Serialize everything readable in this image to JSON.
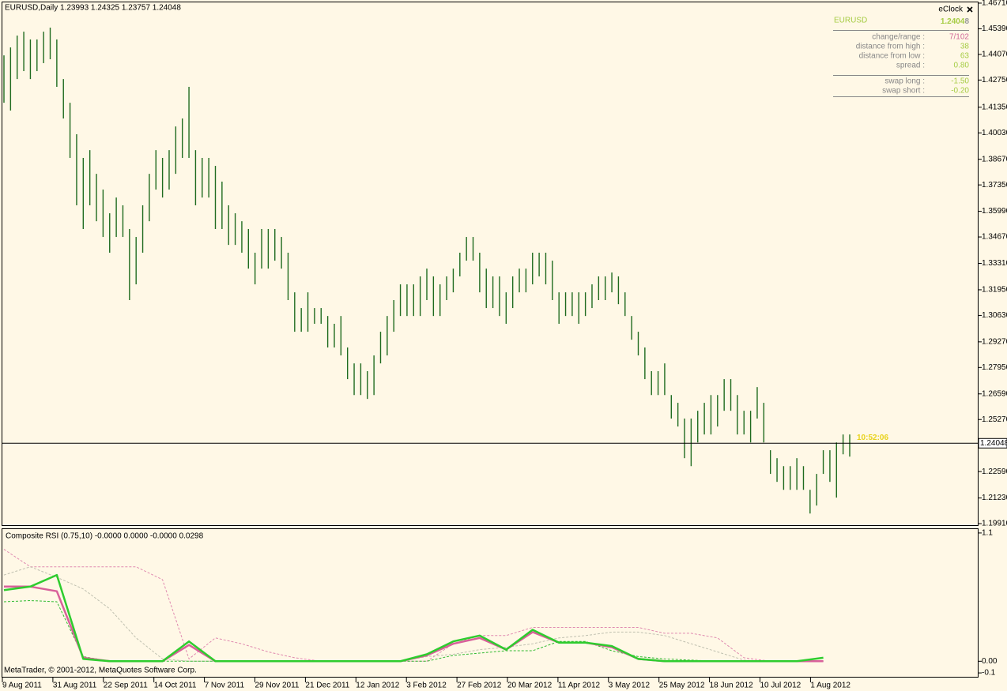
{
  "chart_data": [
    {
      "type": "hl",
      "title": "EURUSD,Daily  1.23993 1.24325 1.23757 1.24048",
      "color": "#1f6b1f",
      "high": [
        1.4402,
        1.4443,
        1.4504,
        1.4524,
        1.4484,
        1.4484,
        1.4524,
        1.4545,
        1.4484,
        1.428,
        1.4158,
        1.3996,
        1.3874,
        1.3914,
        1.3792,
        1.3711,
        1.3589,
        1.367,
        1.363,
        1.3508,
        1.3467,
        1.363,
        1.3792,
        1.3914,
        1.3874,
        1.3914,
        1.4036,
        1.4077,
        1.424,
        1.3914,
        1.3874,
        1.3874,
        1.3833,
        1.3752,
        1.363,
        1.3589,
        1.3548,
        1.3508,
        1.3386,
        1.3508,
        1.3508,
        1.3508,
        1.3467,
        1.3386,
        1.3182,
        1.3101,
        1.3182,
        1.3101,
        1.3101,
        1.306,
        1.302,
        1.306,
        1.2898,
        1.2816,
        1.2816,
        1.2776,
        1.2857,
        1.2979,
        1.306,
        1.3142,
        1.3223,
        1.3223,
        1.3223,
        1.3264,
        1.3304,
        1.3264,
        1.3223,
        1.3264,
        1.3304,
        1.3386,
        1.3467,
        1.3467,
        1.3386,
        1.3304,
        1.3264,
        1.3264,
        1.3182,
        1.3264,
        1.3304,
        1.3304,
        1.3386,
        1.3386,
        1.3386,
        1.3345,
        1.3182,
        1.3182,
        1.3182,
        1.3182,
        1.3182,
        1.3223,
        1.3264,
        1.3264,
        1.3284,
        1.3264,
        1.3182,
        1.306,
        1.2979,
        1.2898,
        1.2776,
        1.2776,
        1.2816,
        1.2653,
        1.2613,
        1.2532,
        1.2532,
        1.2572,
        1.2613,
        1.2653,
        1.2653,
        1.2735,
        1.2735,
        1.2653,
        1.2572,
        1.2572,
        1.2694,
        1.2613,
        1.2369,
        1.2328,
        1.2287,
        1.2287,
        1.2328,
        1.2287,
        1.2165,
        1.2247,
        1.2369,
        1.2369,
        1.2409,
        1.245,
        1.245
      ],
      "low": [
        1.4158,
        1.4118,
        1.428,
        1.4321,
        1.428,
        1.4321,
        1.4362,
        1.4382,
        1.424,
        1.4077,
        1.3874,
        1.363,
        1.3508,
        1.363,
        1.3548,
        1.3467,
        1.3386,
        1.3467,
        1.3467,
        1.3142,
        1.3223,
        1.3386,
        1.3548,
        1.3711,
        1.367,
        1.3711,
        1.3792,
        1.3874,
        1.3874,
        1.363,
        1.367,
        1.367,
        1.3508,
        1.3508,
        1.3426,
        1.3426,
        1.3386,
        1.3304,
        1.3223,
        1.3304,
        1.3304,
        1.3345,
        1.3304,
        1.3142,
        1.2979,
        1.2979,
        1.2979,
        1.302,
        1.302,
        1.2898,
        1.2898,
        1.2857,
        1.2735,
        1.2653,
        1.2653,
        1.2633,
        1.2653,
        1.2816,
        1.2857,
        1.2979,
        1.306,
        1.306,
        1.306,
        1.306,
        1.3142,
        1.306,
        1.306,
        1.3142,
        1.3182,
        1.3264,
        1.3345,
        1.3345,
        1.3182,
        1.3101,
        1.3101,
        1.306,
        1.302,
        1.3101,
        1.3182,
        1.3182,
        1.3223,
        1.3264,
        1.3223,
        1.3142,
        1.302,
        1.306,
        1.306,
        1.302,
        1.306,
        1.3101,
        1.3142,
        1.3142,
        1.3182,
        1.3121,
        1.306,
        1.2938,
        1.2857,
        1.2735,
        1.2653,
        1.2653,
        1.2653,
        1.2532,
        1.2491,
        1.2328,
        1.2287,
        1.2409,
        1.245,
        1.245,
        1.2491,
        1.2572,
        1.2572,
        1.245,
        1.245,
        1.2409,
        1.2532,
        1.2409,
        1.2247,
        1.2206,
        1.2165,
        1.2165,
        1.2165,
        1.2165,
        1.2043,
        1.2084,
        1.2247,
        1.2206,
        1.2125,
        1.2348,
        1.2336
      ],
      "ylim": [
        1.1979,
        1.4679
      ],
      "yticks": [
        {
          "value": 1.4671,
          "label": "1.46710"
        },
        {
          "value": 1.4539,
          "label": "1.45390"
        },
        {
          "value": 1.4407,
          "label": "1.44070"
        },
        {
          "value": 1.4275,
          "label": "1.42750"
        },
        {
          "value": 1.4135,
          "label": "1.41350"
        },
        {
          "value": 1.4003,
          "label": "1.40030"
        },
        {
          "value": 1.3867,
          "label": "1.38670"
        },
        {
          "value": 1.3735,
          "label": "1.37350"
        },
        {
          "value": 1.3599,
          "label": "1.35990"
        },
        {
          "value": 1.3467,
          "label": "1.34670"
        },
        {
          "value": 1.3331,
          "label": "1.33310"
        },
        {
          "value": 1.3195,
          "label": "1.31950"
        },
        {
          "value": 1.3063,
          "label": "1.30630"
        },
        {
          "value": 1.2927,
          "label": "1.29270"
        },
        {
          "value": 1.2795,
          "label": "1.27950"
        },
        {
          "value": 1.2659,
          "label": "1.26590"
        },
        {
          "value": 1.2527,
          "label": "1.25270"
        },
        {
          "value": 1.2259,
          "label": "1.22590"
        },
        {
          "value": 1.2123,
          "label": "1.21230"
        },
        {
          "value": 1.1991,
          "label": "1.19910"
        }
      ],
      "x_labels": [
        "9 Aug 2011",
        "31 Aug 2011",
        "22 Sep 2011",
        "14 Oct 2011",
        "7 Nov 2011",
        "29 Nov 2011",
        "21 Dec 2011",
        "12 Jan 2012",
        "3 Feb 2012",
        "27 Feb 2012",
        "20 Mar 2012",
        "11 Apr 2012",
        "3 May 2012",
        "25 May 2012",
        "18 Jun 2012",
        "10 Jul 2012",
        "1 Aug 2012"
      ],
      "current_price": 1.24048,
      "timer": "10:52:06"
    },
    {
      "type": "line",
      "title": "Composite RSI (0.75,10) -0.0000 0.0000 -0.0000 0.0298",
      "x": [
        0,
        4,
        8,
        12,
        16,
        20,
        24,
        28,
        32,
        36,
        40,
        44,
        48,
        52,
        56,
        60,
        64,
        68,
        72,
        76,
        80,
        84,
        88,
        92,
        96,
        100,
        104,
        108,
        112,
        116,
        120,
        124,
        128
      ],
      "series": [
        {
          "color": "#e08ab0",
          "dashed": true,
          "values": [
            0.96,
            0.81,
            0.81,
            0.81,
            0.81,
            0.81,
            0.7,
            0.02,
            0.2,
            0.15,
            0.08,
            0.03,
            0,
            0,
            0,
            0,
            0,
            0.15,
            0.22,
            0.22,
            0.29,
            0.29,
            0.29,
            0.29,
            0.29,
            0.24,
            0.24,
            0.2,
            0.03,
            0,
            0,
            0,
            null
          ]
        },
        {
          "color": "#c0c0b0",
          "dashed": true,
          "values": [
            0.74,
            0.81,
            0.72,
            0.62,
            0.45,
            0.2,
            0.02,
            0,
            0,
            0,
            0,
            0,
            0,
            0,
            0,
            0,
            0.04,
            0.06,
            0.1,
            0.12,
            0.15,
            0.2,
            0.22,
            0.25,
            0.25,
            0.22,
            0.15,
            0.08,
            0.01,
            0,
            0,
            0,
            null
          ]
        },
        {
          "color": "#33bb33",
          "dashed": true,
          "values": [
            0.51,
            0.52,
            0.51,
            0.04,
            0,
            0,
            0,
            0,
            0,
            0,
            0,
            0,
            0,
            0,
            0,
            0,
            0,
            0.05,
            0.07,
            0.09,
            0.09,
            0.17,
            0.17,
            0.09,
            0.04,
            0.02,
            0.01,
            0,
            0,
            0,
            0,
            0,
            null
          ]
        },
        {
          "color": "#d8609a",
          "dashed": false,
          "values": [
            0.64,
            0.64,
            0.6,
            0.03,
            0,
            0,
            0,
            0.14,
            0,
            0,
            0,
            0,
            0,
            0,
            0,
            0,
            0.05,
            0.15,
            0.2,
            0.1,
            0.25,
            0.16,
            0.16,
            0.12,
            0.02,
            0,
            0,
            0,
            0,
            0,
            0,
            0,
            null
          ]
        },
        {
          "color": "#2ecc2e",
          "dashed": false,
          "values": [
            0.61,
            0.64,
            0.74,
            0.02,
            0,
            0,
            0,
            0.17,
            0,
            0,
            0,
            0,
            0,
            0,
            0,
            0,
            0.06,
            0.17,
            0.22,
            0.1,
            0.27,
            0.16,
            0.16,
            0.13,
            0.02,
            0,
            0,
            0,
            0,
            0,
            0,
            0.03,
            null
          ]
        }
      ],
      "ylim": [
        -0.14,
        1.14
      ],
      "yticks": [
        1.1,
        {
          "value": 0,
          "label": "0.00"
        },
        -0.1
      ]
    }
  ],
  "eclock": {
    "title": "eClock",
    "symbol": "EURUSD",
    "price": "1.24048",
    "rows": [
      {
        "label": "change/range :",
        "value": "7/102",
        "color": "#d06a9a"
      },
      {
        "label": "distance from high :",
        "value": "38",
        "color": "#a6cc44"
      },
      {
        "label": "distance from low :",
        "value": "63",
        "color": "#a6cc44"
      },
      {
        "label": "spread :",
        "value": "0.80",
        "color": "#a6cc44"
      }
    ],
    "swap_rows": [
      {
        "label": "swap long :",
        "value": "-1.50",
        "color": "#a6cc44"
      },
      {
        "label": "swap short :",
        "value": "-0.20",
        "color": "#a6cc44"
      }
    ]
  },
  "footer": "MetaTrader, © 2001-2012, MetaQuotes Software Corp."
}
